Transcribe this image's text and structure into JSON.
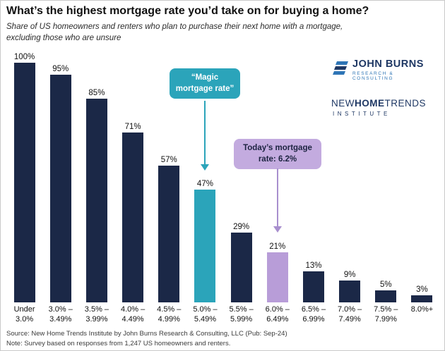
{
  "chart_data": {
    "type": "bar",
    "title": "What’s the highest mortgage rate you’d take on for buying a home?",
    "subtitle": "Share of US homeowners and renters who plan to purchase their next home with a mortgage,\nexcluding those who are unsure",
    "categories": [
      "Under\n3.0%",
      "3.0% –\n3.49%",
      "3.5% –\n3.99%",
      "4.0% –\n4.49%",
      "4.5% –\n4.99%",
      "5.0% –\n5.49%",
      "5.5% –\n5.99%",
      "6.0% –\n6.49%",
      "6.5% –\n6.99%",
      "7.0% –\n7.49%",
      "7.5% –\n7.99%",
      "8.0%+"
    ],
    "values": [
      100,
      95,
      85,
      71,
      57,
      47,
      29,
      21,
      13,
      9,
      5,
      3
    ],
    "value_suffix": "%",
    "ylim": [
      0,
      100
    ],
    "grid": false,
    "legend": false,
    "bar_color_default": "navy",
    "colors_by_index": {
      "5": "teal",
      "7": "purple"
    },
    "annotations": [
      {
        "text": "“Magic\nmortgage rate”",
        "target_category_index": 5,
        "color": "teal"
      },
      {
        "text": "Today’s mortgage\nrate: 6.2%",
        "target_category_index": 7,
        "color": "purple"
      }
    ]
  },
  "colors": {
    "navy": "#1b2847",
    "teal": "#2ba4ba",
    "purple": "#b89dd8",
    "purple_box": "#c3abdf",
    "jb_navy": "#1f3864",
    "jb_blue": "#2e75b6"
  },
  "logos": {
    "john_burns": {
      "title": "JOHN BURNS",
      "subtitle": "RESEARCH & CONSULTING"
    },
    "new_home_trends": {
      "part1": "NEW",
      "part2": "HOME",
      "part3": "TRENDS",
      "subtitle": "INSTITUTE"
    }
  },
  "footer": {
    "source": "Source: New Home Trends Institute by John Burns Research & Consulting, LLC (Pub: Sep-24)",
    "note": "Note: Survey based on responses from 1,247 US homeowners and renters."
  }
}
